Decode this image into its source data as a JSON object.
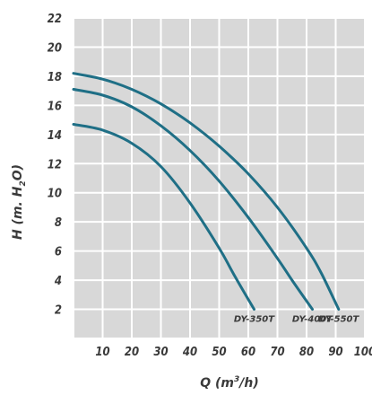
{
  "chart_data": {
    "type": "line",
    "xlabel": {
      "main": "Q (m",
      "sup": "3",
      "tail": "/h)"
    },
    "ylabel": {
      "main": "H (m. H",
      "sub": "2",
      "tail": "O)"
    },
    "xlim": [
      0,
      100
    ],
    "ylim": [
      0,
      22
    ],
    "x_ticks": [
      "10",
      "20",
      "30",
      "40",
      "50",
      "60",
      "70",
      "80",
      "90",
      "100"
    ],
    "y_ticks": [
      "2",
      "4",
      "6",
      "8",
      "10",
      "12",
      "14",
      "16",
      "18",
      "20",
      "22"
    ],
    "grid": true,
    "line_color": "#1f6f86",
    "series": [
      {
        "name": "DY-350T",
        "points": [
          [
            0,
            14.7
          ],
          [
            10,
            14.3
          ],
          [
            20,
            13.4
          ],
          [
            30,
            11.8
          ],
          [
            40,
            9.3
          ],
          [
            50,
            6.2
          ],
          [
            55,
            4.4
          ],
          [
            62,
            2.0
          ]
        ]
      },
      {
        "name": "DY-400T",
        "points": [
          [
            0,
            17.1
          ],
          [
            10,
            16.7
          ],
          [
            20,
            15.9
          ],
          [
            30,
            14.6
          ],
          [
            40,
            12.9
          ],
          [
            50,
            10.8
          ],
          [
            60,
            8.3
          ],
          [
            70,
            5.5
          ],
          [
            75,
            4.0
          ],
          [
            82,
            2.0
          ]
        ]
      },
      {
        "name": "DY-550T",
        "points": [
          [
            0,
            18.2
          ],
          [
            10,
            17.8
          ],
          [
            20,
            17.1
          ],
          [
            30,
            16.1
          ],
          [
            40,
            14.8
          ],
          [
            50,
            13.2
          ],
          [
            60,
            11.3
          ],
          [
            70,
            9.0
          ],
          [
            80,
            6.2
          ],
          [
            85,
            4.5
          ],
          [
            91,
            2.0
          ]
        ]
      }
    ]
  }
}
